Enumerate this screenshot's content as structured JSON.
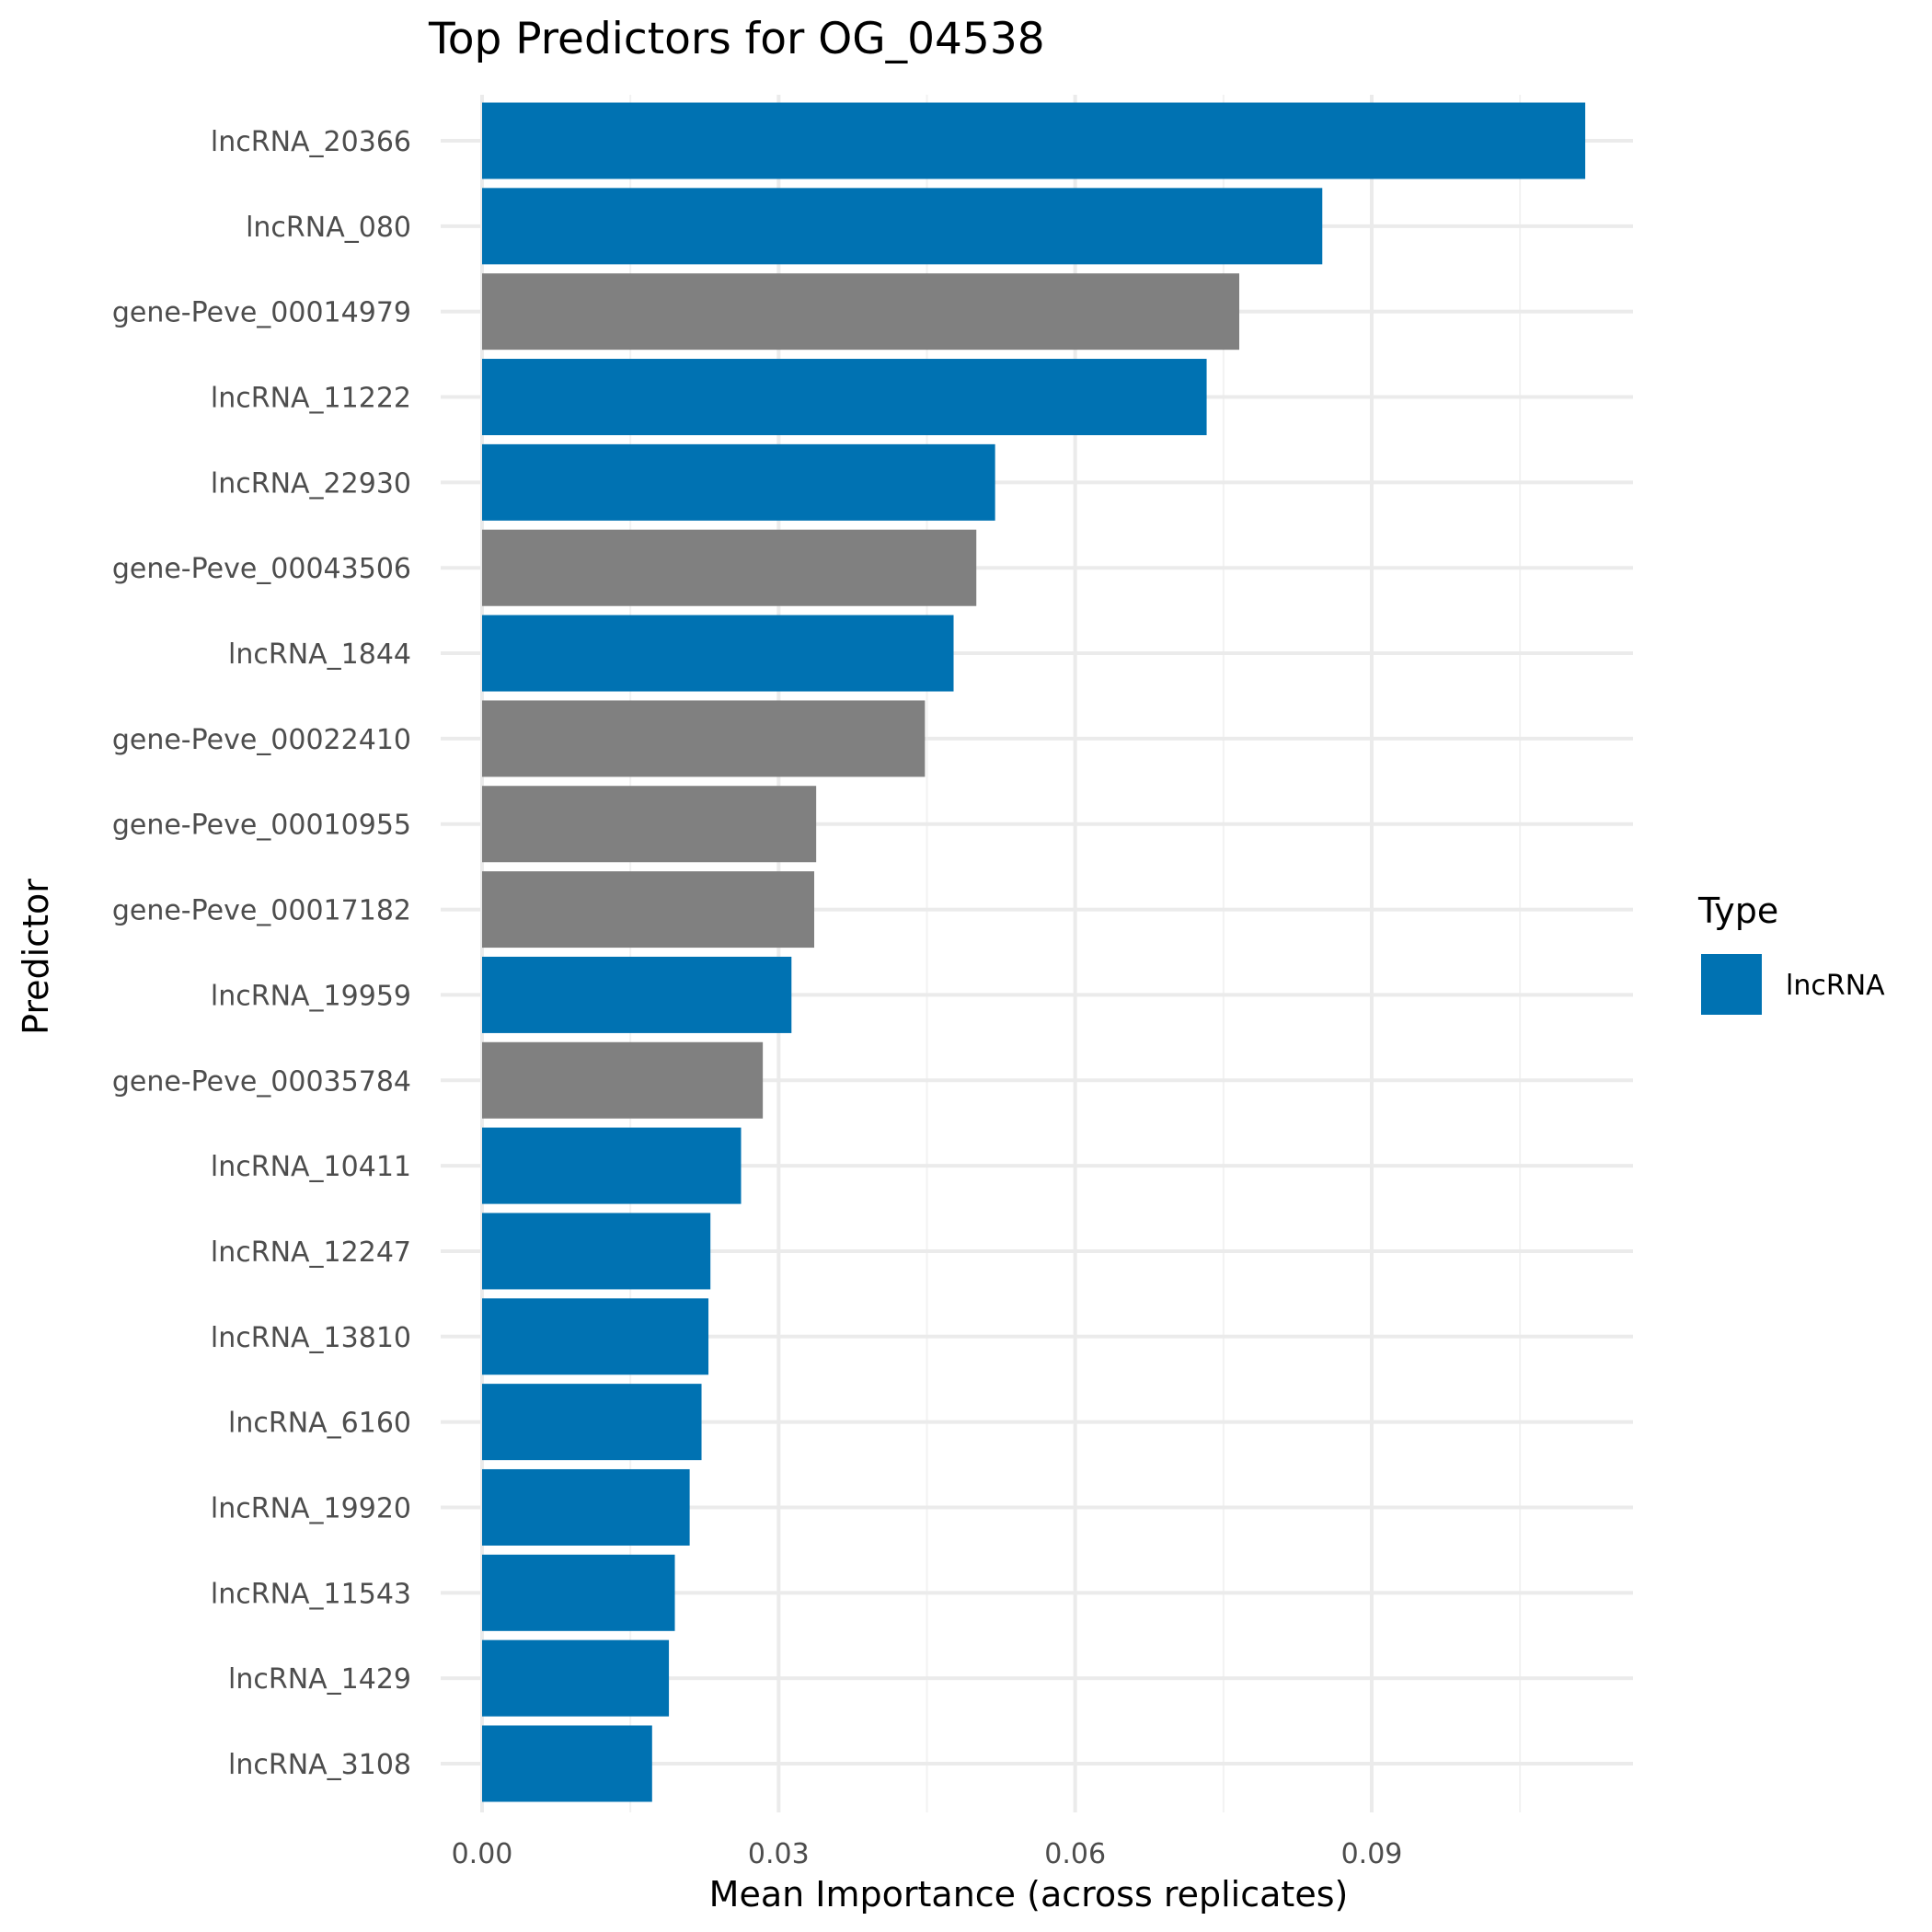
{
  "chart_data": {
    "type": "bar",
    "orientation": "horizontal",
    "title": "Top Predictors for OG_04538",
    "xlabel": "Mean Importance (across replicates)",
    "ylabel": "Predictor",
    "xlim": [
      0,
      0.117
    ],
    "xticks": [
      0.0,
      0.03,
      0.06,
      0.09
    ],
    "xtick_labels": [
      "0.00",
      "0.03",
      "0.06",
      "0.09"
    ],
    "grid": true,
    "categories": [
      "lncRNA_20366",
      "lncRNA_080",
      "gene-Peve_00014979",
      "lncRNA_11222",
      "lncRNA_22930",
      "gene-Peve_00043506",
      "lncRNA_1844",
      "gene-Peve_00022410",
      "gene-Peve_00010955",
      "gene-Peve_00017182",
      "lncRNA_19959",
      "gene-Peve_00035784",
      "lncRNA_10411",
      "lncRNA_12247",
      "lncRNA_13810",
      "lncRNA_6160",
      "lncRNA_19920",
      "lncRNA_11543",
      "lncRNA_1429",
      "lncRNA_3108"
    ],
    "values": [
      0.1116,
      0.085,
      0.0766,
      0.0733,
      0.0519,
      0.05,
      0.0477,
      0.0448,
      0.0338,
      0.0336,
      0.0313,
      0.0284,
      0.0262,
      0.0231,
      0.0229,
      0.0222,
      0.021,
      0.0195,
      0.0189,
      0.0172
    ],
    "types": [
      "lncRNA",
      "lncRNA",
      "gene",
      "lncRNA",
      "lncRNA",
      "gene",
      "lncRNA",
      "gene",
      "gene",
      "gene",
      "lncRNA",
      "gene",
      "lncRNA",
      "lncRNA",
      "lncRNA",
      "lncRNA",
      "lncRNA",
      "lncRNA",
      "lncRNA",
      "lncRNA"
    ],
    "colors": {
      "lncRNA": "#0072B2",
      "gene": "#808080"
    },
    "legend": {
      "title": "Type",
      "position": "right",
      "entries": [
        {
          "label": "lncRNA",
          "color": "#0072B2"
        }
      ]
    }
  }
}
